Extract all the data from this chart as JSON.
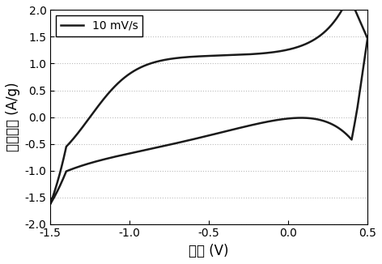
{
  "xlabel": "电位 (V)",
  "ylabel": "电流密度 (A/g)",
  "legend_label": "10 mV/s",
  "xlim": [
    -1.5,
    0.5
  ],
  "ylim": [
    -2.0,
    2.0
  ],
  "xticks": [
    -1.5,
    -1.0,
    -0.5,
    0.0,
    0.5
  ],
  "yticks": [
    -2.0,
    -1.5,
    -1.0,
    -0.5,
    0.0,
    0.5,
    1.0,
    1.5,
    2.0
  ],
  "line_color": "#1a1a1a",
  "line_width": 1.8,
  "grid_color": "#bbbbbb",
  "font_size_label": 12,
  "font_size_tick": 10,
  "font_size_legend": 10
}
